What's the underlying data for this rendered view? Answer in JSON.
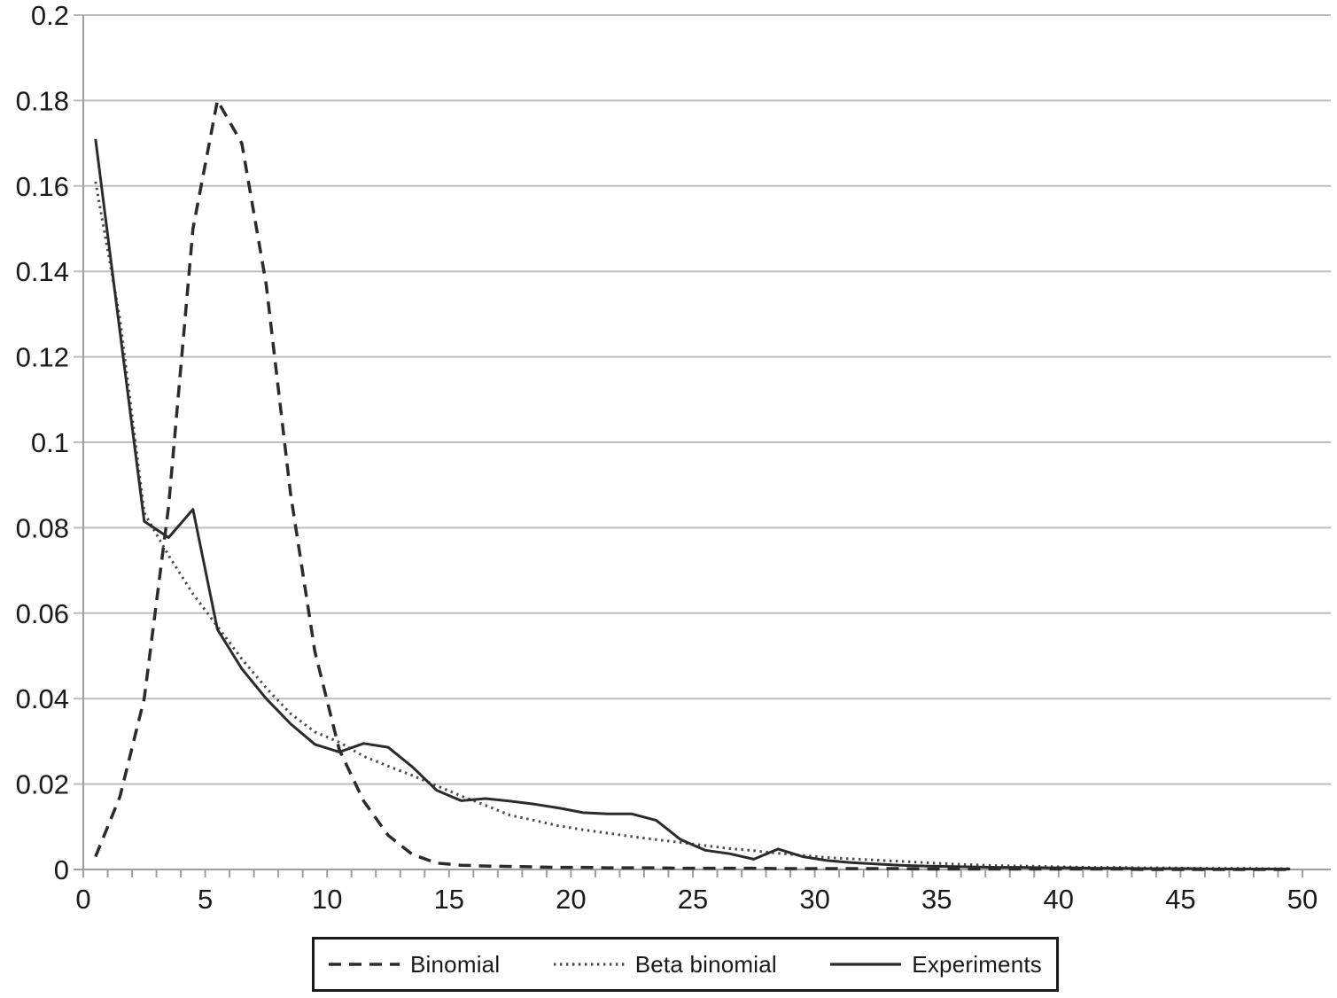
{
  "chart_data": {
    "type": "line",
    "x_start": 0.5,
    "x_step": 1,
    "xlim": [
      0,
      50
    ],
    "ylim": [
      0,
      0.2
    ],
    "grid": true,
    "xticks": {
      "minor_step": 1,
      "labels": [
        {
          "value": 0,
          "text": "0"
        },
        {
          "value": 5,
          "text": "5"
        },
        {
          "value": 10,
          "text": "10"
        },
        {
          "value": 15,
          "text": "15"
        },
        {
          "value": 20,
          "text": "20"
        },
        {
          "value": 25,
          "text": "25"
        },
        {
          "value": 30,
          "text": "30"
        },
        {
          "value": 35,
          "text": "35"
        },
        {
          "value": 40,
          "text": "40"
        },
        {
          "value": 45,
          "text": "45"
        },
        {
          "value": 50,
          "text": "50"
        }
      ]
    },
    "yticks": [
      {
        "value": 0,
        "text": "0"
      },
      {
        "value": 0.02,
        "text": "0.02"
      },
      {
        "value": 0.04,
        "text": "0.04"
      },
      {
        "value": 0.06,
        "text": "0.06"
      },
      {
        "value": 0.08,
        "text": "0.08"
      },
      {
        "value": 0.1,
        "text": "0.1"
      },
      {
        "value": 0.12,
        "text": "0.12"
      },
      {
        "value": 0.14,
        "text": "0.14"
      },
      {
        "value": 0.16,
        "text": "0.16"
      },
      {
        "value": 0.18,
        "text": "0.18"
      },
      {
        "value": 0.2,
        "text": "0.2"
      }
    ],
    "legend_position": "bottom",
    "series": [
      {
        "name": "Binomial",
        "line_style": "dashed",
        "color": "#2b2b2b",
        "width": 3.5,
        "dash": "14 9",
        "values": [
          0.003,
          0.017,
          0.04,
          0.085,
          0.15,
          0.18,
          0.17,
          0.137,
          0.088,
          0.051,
          0.028,
          0.016,
          0.008,
          0.0035,
          0.0015,
          0.001,
          0.0008,
          0.0007,
          0.0006,
          0.0005,
          0.0005,
          0.0004,
          0.0004,
          0.0004,
          0.0003,
          0.0003,
          0.0003,
          0.0003,
          0.0002,
          0.0002,
          0.0002,
          0.0002,
          0.0002,
          0.0002,
          0.0001,
          0.0001,
          0.0001,
          0.0001,
          0.0001,
          0.0001,
          0.0001,
          0.0001,
          0.0001,
          0,
          0,
          0,
          0,
          0,
          0,
          0
        ]
      },
      {
        "name": "Beta binomial",
        "line_style": "dotted",
        "color": "#4a4a4a",
        "width": 3,
        "dash": "2.4 4.6",
        "values": [
          0.161,
          0.129,
          0.0835,
          0.0735,
          0.0645,
          0.0569,
          0.0493,
          0.0425,
          0.0365,
          0.0322,
          0.0298,
          0.0265,
          0.0242,
          0.022,
          0.0196,
          0.0172,
          0.015,
          0.0127,
          0.0115,
          0.0102,
          0.0093,
          0.0085,
          0.0077,
          0.007,
          0.0063,
          0.0056,
          0.0049,
          0.0044,
          0.0038,
          0.0033,
          0.0028,
          0.0025,
          0.0022,
          0.0019,
          0.0016,
          0.0013,
          0.0011,
          0.0009,
          0.0008,
          0.0007,
          0.0006,
          0.0005,
          0.0005,
          0.0004,
          0.0004,
          0.0003,
          0.0003,
          0.0003,
          0.0002,
          0.0002
        ]
      },
      {
        "name": "Experiments",
        "line_style": "solid",
        "color": "#2b2b2b",
        "width": 3,
        "dash": "",
        "values": [
          0.171,
          0.126,
          0.0815,
          0.0777,
          0.0843,
          0.0562,
          0.047,
          0.04,
          0.0341,
          0.0293,
          0.0275,
          0.0295,
          0.0286,
          0.024,
          0.0185,
          0.0161,
          0.0166,
          0.016,
          0.0153,
          0.0144,
          0.0133,
          0.013,
          0.013,
          0.0115,
          0.007,
          0.0045,
          0.0037,
          0.0024,
          0.0048,
          0.003,
          0.0021,
          0.0016,
          0.0013,
          0.001,
          0.0008,
          0.0007,
          0.0006,
          0.0005,
          0.0005,
          0.0004,
          0.0004,
          0.0003,
          0.0003,
          0.0002,
          0.0002,
          0.0002,
          0.0001,
          0.0001,
          0.0001,
          0.0001
        ]
      }
    ]
  },
  "legend": {
    "items": [
      {
        "label": "Binomial"
      },
      {
        "label": "Beta binomial"
      },
      {
        "label": "Experiments"
      }
    ]
  },
  "colors": {
    "background": "#ffffff",
    "gridline": "#bdbdbd",
    "axis": "#9e9e9e",
    "tick": "#9e9e9e",
    "label": "#1a1a1a",
    "legend_border": "#1a1a1a"
  }
}
